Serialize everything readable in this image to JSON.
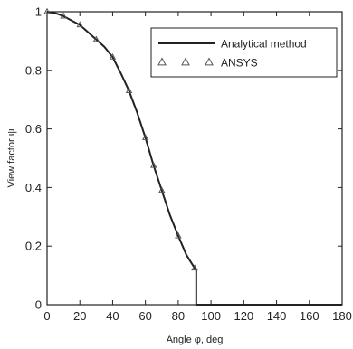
{
  "chart_data": {
    "type": "line",
    "xlabel": "Angle φ, deg",
    "ylabel": "View factor ψ",
    "xlim": [
      0,
      180
    ],
    "ylim": [
      0,
      1
    ],
    "xticks": [
      "0",
      "20",
      "40",
      "60",
      "80",
      "100",
      "120",
      "140",
      "160",
      "180"
    ],
    "yticks": [
      "0",
      "0.2",
      "0.4",
      "0.6",
      "0.8",
      "1"
    ],
    "grid": false,
    "legend_position": "top-right",
    "legend": [
      {
        "label": "Analytical method",
        "marker": "line"
      },
      {
        "label": "ANSYS",
        "marker": "triangle"
      }
    ],
    "series": [
      {
        "name": "Analytical method",
        "style": "line",
        "x": [
          0,
          5,
          10,
          15,
          20,
          25,
          30,
          35,
          40,
          45,
          50,
          55,
          60,
          65,
          70,
          75,
          80,
          85,
          90,
          91,
          91,
          180
        ],
        "y": [
          1.0,
          0.995,
          0.985,
          0.97,
          0.955,
          0.93,
          0.905,
          0.88,
          0.845,
          0.79,
          0.73,
          0.655,
          0.57,
          0.475,
          0.39,
          0.305,
          0.235,
          0.17,
          0.125,
          0.12,
          0.0,
          0.0
        ]
      },
      {
        "name": "ANSYS",
        "style": "markers",
        "x": [
          0,
          10,
          20,
          30,
          40,
          50,
          60,
          65,
          70,
          80,
          90
        ],
        "y": [
          1.0,
          0.985,
          0.955,
          0.905,
          0.845,
          0.73,
          0.57,
          0.475,
          0.39,
          0.235,
          0.125
        ]
      }
    ],
    "colors": {
      "line": "#222222",
      "marker": "#555555",
      "frame": "#222222"
    }
  }
}
